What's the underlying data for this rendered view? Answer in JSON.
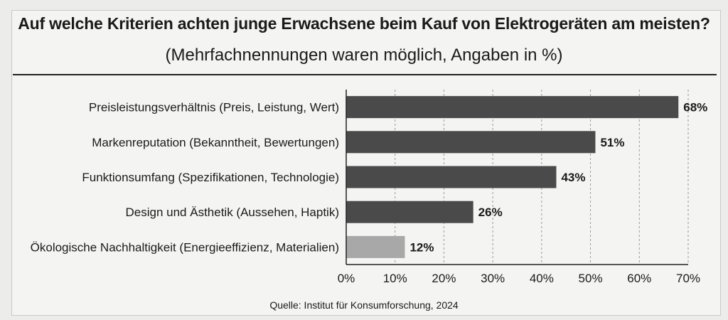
{
  "header": {
    "title": "Auf welche Kriterien achten junge Erwachsene beim Kauf von Elektrogeräten am meisten?",
    "subtitle": "(Mehrfachnennungen waren möglich, Angaben in %)"
  },
  "footer": {
    "source": "Quelle: Institut für Konsumforschung, 2024"
  },
  "chart_data": {
    "type": "bar",
    "orientation": "horizontal",
    "title": "Auf welche Kriterien achten junge Erwachsene beim Kauf von Elektrogeräten am meisten?",
    "subtitle": "(Mehrfachnennungen waren möglich, Angaben in %)",
    "categories": [
      "Preisleistungsverhältnis (Preis, Leistung, Wert)",
      "Markenreputation (Bekanntheit, Bewertungen)",
      "Funktionsumfang (Spezifikationen, Technologie)",
      "Design und Ästhetik (Aussehen, Haptik)",
      "Ökologische Nachhaltigkeit (Energieeffizienz, Materialien)"
    ],
    "values": [
      68,
      51,
      43,
      26,
      12
    ],
    "value_labels": [
      "68%",
      "51%",
      "43%",
      "26%",
      "12%"
    ],
    "bar_colors": [
      "#4a4a4a",
      "#4a4a4a",
      "#4a4a4a",
      "#4a4a4a",
      "#a8a8a8"
    ],
    "xlim": [
      0,
      70
    ],
    "x_ticks": [
      0,
      10,
      20,
      30,
      40,
      50,
      60,
      70
    ],
    "x_tick_labels": [
      "0%",
      "10%",
      "20%",
      "30%",
      "40%",
      "50%",
      "60%",
      "70%"
    ],
    "xlabel": "",
    "ylabel": "",
    "grid": "vertical dashed",
    "legend": "none"
  }
}
